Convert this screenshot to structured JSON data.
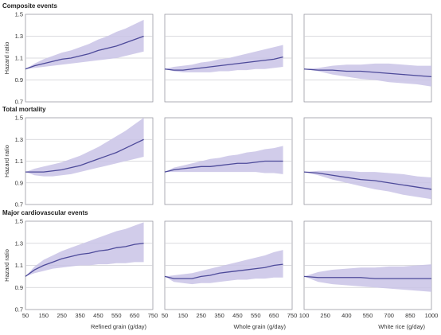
{
  "chart_data": {
    "type": "line",
    "y_axis_label": "Hazard ratio",
    "y_ticks": [
      0.7,
      0.9,
      1.1,
      1.3,
      1.5
    ],
    "ylim": [
      0.7,
      1.5
    ],
    "grid": "horizontal",
    "rows": [
      {
        "title": "Composite events"
      },
      {
        "title": "Total mortality"
      },
      {
        "title": "Major cardiovascular events"
      }
    ],
    "columns": [
      {
        "xlabel": "Refined grain (g/day)",
        "xlim": [
          50,
          750
        ],
        "x_ticks": [
          50,
          150,
          250,
          350,
          450,
          550,
          650,
          750
        ]
      },
      {
        "xlabel": "Whole grain (g/day)",
        "xlim": [
          50,
          750
        ],
        "x_ticks": [
          50,
          150,
          250,
          350,
          450,
          550,
          650,
          750
        ]
      },
      {
        "xlabel": "White rice (g/day)",
        "xlim": [
          100,
          1000
        ],
        "x_ticks": [
          100,
          250,
          400,
          550,
          700,
          850,
          1000
        ]
      }
    ],
    "panels": [
      {
        "row": 0,
        "col": 0,
        "x": [
          50,
          100,
          150,
          200,
          250,
          300,
          350,
          400,
          450,
          500,
          550,
          600,
          650,
          700
        ],
        "hr": [
          1.0,
          1.03,
          1.05,
          1.07,
          1.09,
          1.1,
          1.12,
          1.14,
          1.17,
          1.19,
          1.21,
          1.24,
          1.27,
          1.3
        ],
        "lower": [
          1.0,
          1.01,
          1.02,
          1.03,
          1.04,
          1.05,
          1.06,
          1.07,
          1.08,
          1.09,
          1.1,
          1.12,
          1.14,
          1.16
        ],
        "upper": [
          1.0,
          1.05,
          1.09,
          1.12,
          1.15,
          1.17,
          1.2,
          1.23,
          1.27,
          1.3,
          1.34,
          1.37,
          1.41,
          1.45
        ]
      },
      {
        "row": 0,
        "col": 1,
        "x": [
          50,
          100,
          150,
          200,
          250,
          300,
          350,
          400,
          450,
          500,
          550,
          600,
          650,
          700
        ],
        "hr": [
          1.0,
          0.99,
          0.99,
          1.0,
          1.01,
          1.02,
          1.03,
          1.04,
          1.05,
          1.06,
          1.07,
          1.08,
          1.09,
          1.11
        ],
        "lower": [
          1.0,
          0.98,
          0.97,
          0.97,
          0.97,
          0.97,
          0.98,
          0.98,
          0.99,
          0.99,
          1.0,
          1.0,
          1.01,
          1.02
        ],
        "upper": [
          1.0,
          1.02,
          1.03,
          1.04,
          1.06,
          1.07,
          1.09,
          1.1,
          1.12,
          1.14,
          1.16,
          1.18,
          1.2,
          1.22
        ]
      },
      {
        "row": 0,
        "col": 2,
        "x": [
          100,
          200,
          300,
          400,
          500,
          600,
          700,
          800,
          900,
          1000
        ],
        "hr": [
          1.0,
          0.99,
          0.99,
          0.98,
          0.98,
          0.97,
          0.96,
          0.95,
          0.94,
          0.93
        ],
        "lower": [
          1.0,
          0.98,
          0.95,
          0.93,
          0.91,
          0.9,
          0.88,
          0.87,
          0.86,
          0.84
        ],
        "upper": [
          1.0,
          1.01,
          1.03,
          1.04,
          1.04,
          1.05,
          1.05,
          1.04,
          1.03,
          1.03
        ]
      },
      {
        "row": 1,
        "col": 0,
        "x": [
          50,
          100,
          150,
          200,
          250,
          300,
          350,
          400,
          450,
          500,
          550,
          600,
          650,
          700
        ],
        "hr": [
          1.0,
          1.0,
          1.0,
          1.01,
          1.02,
          1.04,
          1.06,
          1.09,
          1.12,
          1.15,
          1.18,
          1.22,
          1.26,
          1.3
        ],
        "lower": [
          1.0,
          0.97,
          0.96,
          0.96,
          0.97,
          0.98,
          1.0,
          1.02,
          1.04,
          1.06,
          1.08,
          1.1,
          1.12,
          1.14
        ],
        "upper": [
          1.0,
          1.03,
          1.05,
          1.07,
          1.09,
          1.12,
          1.15,
          1.19,
          1.23,
          1.28,
          1.33,
          1.38,
          1.44,
          1.5
        ]
      },
      {
        "row": 1,
        "col": 1,
        "x": [
          50,
          100,
          150,
          200,
          250,
          300,
          350,
          400,
          450,
          500,
          550,
          600,
          650,
          700
        ],
        "hr": [
          1.0,
          1.02,
          1.03,
          1.04,
          1.05,
          1.05,
          1.06,
          1.07,
          1.08,
          1.08,
          1.09,
          1.1,
          1.1,
          1.1
        ],
        "lower": [
          1.0,
          1.0,
          1.0,
          1.0,
          1.0,
          1.0,
          1.0,
          1.0,
          1.0,
          1.0,
          1.0,
          0.99,
          0.99,
          0.98
        ],
        "upper": [
          1.0,
          1.04,
          1.06,
          1.08,
          1.1,
          1.12,
          1.13,
          1.15,
          1.16,
          1.18,
          1.19,
          1.21,
          1.22,
          1.24
        ]
      },
      {
        "row": 1,
        "col": 2,
        "x": [
          100,
          200,
          300,
          400,
          500,
          600,
          700,
          800,
          900,
          1000
        ],
        "hr": [
          1.0,
          0.99,
          0.97,
          0.95,
          0.93,
          0.92,
          0.9,
          0.88,
          0.86,
          0.84
        ],
        "lower": [
          1.0,
          0.97,
          0.93,
          0.9,
          0.87,
          0.84,
          0.82,
          0.79,
          0.77,
          0.75
        ],
        "upper": [
          1.0,
          1.01,
          1.01,
          1.01,
          1.0,
          1.0,
          0.99,
          0.98,
          0.96,
          0.95
        ]
      },
      {
        "row": 2,
        "col": 0,
        "x": [
          50,
          100,
          150,
          200,
          250,
          300,
          350,
          400,
          450,
          500,
          550,
          600,
          650,
          700
        ],
        "hr": [
          1.0,
          1.06,
          1.1,
          1.13,
          1.16,
          1.18,
          1.2,
          1.21,
          1.23,
          1.24,
          1.26,
          1.27,
          1.29,
          1.3
        ],
        "lower": [
          1.0,
          1.03,
          1.05,
          1.07,
          1.08,
          1.09,
          1.1,
          1.1,
          1.11,
          1.11,
          1.12,
          1.12,
          1.13,
          1.13
        ],
        "upper": [
          1.0,
          1.09,
          1.15,
          1.19,
          1.23,
          1.26,
          1.29,
          1.32,
          1.35,
          1.38,
          1.41,
          1.43,
          1.46,
          1.49
        ]
      },
      {
        "row": 2,
        "col": 1,
        "x": [
          50,
          100,
          150,
          200,
          250,
          300,
          350,
          400,
          450,
          500,
          550,
          600,
          650,
          700
        ],
        "hr": [
          1.0,
          0.98,
          0.98,
          0.98,
          1.0,
          1.01,
          1.03,
          1.04,
          1.05,
          1.06,
          1.07,
          1.08,
          1.1,
          1.11
        ],
        "lower": [
          1.0,
          0.95,
          0.94,
          0.93,
          0.94,
          0.94,
          0.95,
          0.96,
          0.97,
          0.97,
          0.98,
          0.98,
          0.99,
          0.99
        ],
        "upper": [
          1.0,
          1.01,
          1.02,
          1.03,
          1.05,
          1.07,
          1.09,
          1.11,
          1.13,
          1.15,
          1.17,
          1.19,
          1.22,
          1.24
        ]
      },
      {
        "row": 2,
        "col": 2,
        "x": [
          100,
          200,
          300,
          400,
          500,
          600,
          700,
          800,
          900,
          1000
        ],
        "hr": [
          1.0,
          0.99,
          0.99,
          0.99,
          0.99,
          0.98,
          0.98,
          0.98,
          0.98,
          0.98
        ],
        "lower": [
          1.0,
          0.95,
          0.93,
          0.92,
          0.91,
          0.9,
          0.89,
          0.88,
          0.87,
          0.86
        ],
        "upper": [
          1.0,
          1.04,
          1.06,
          1.07,
          1.08,
          1.08,
          1.09,
          1.09,
          1.1,
          1.11
        ]
      }
    ],
    "colors": {
      "line": "#4d4a9a",
      "band": "#c9c3e6",
      "grid": "#cfcfd4",
      "frame": "#9a9aa4"
    }
  }
}
